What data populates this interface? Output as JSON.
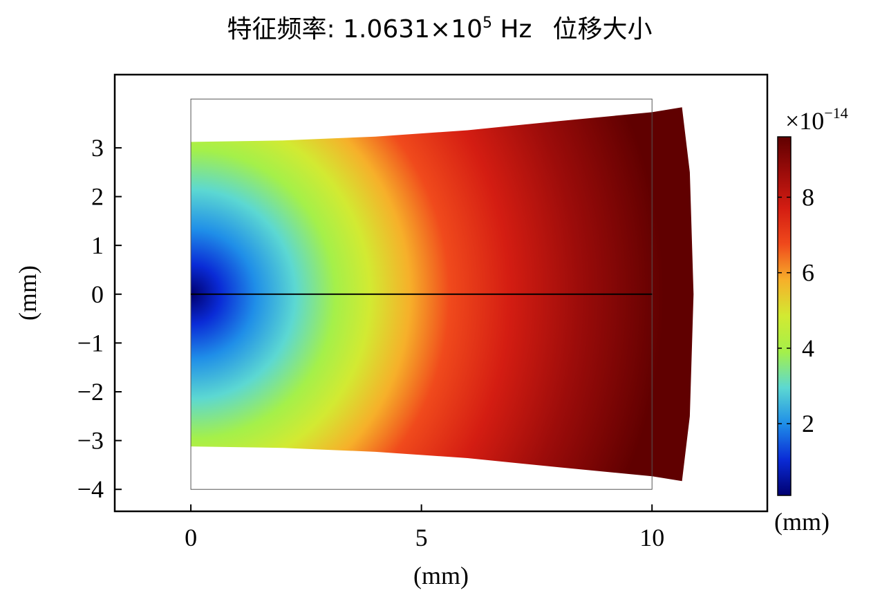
{
  "chart_data": {
    "type": "heatmap",
    "title": "特征频率: 1.0631×10",
    "title_exponent": "5",
    "title_suffix": " Hz",
    "subtitle": "位移大小",
    "xlabel": "(mm)",
    "ylabel": "(mm)",
    "xlim": [
      -1.65,
      12.5
    ],
    "ylim": [
      -4.45,
      4.5
    ],
    "x_ticks": [
      0,
      5,
      10
    ],
    "x_tick_labels": [
      "0",
      "5",
      "10"
    ],
    "y_ticks": [
      3,
      2,
      1,
      0,
      -1,
      -2,
      -3,
      -4
    ],
    "y_tick_labels": [
      "3",
      "2",
      "1",
      "0",
      "−1",
      "−2",
      "−3",
      "−4"
    ],
    "grid": false,
    "undeformed_outline": {
      "x": [
        0,
        10
      ],
      "y": [
        -4,
        4
      ]
    },
    "centerline": {
      "y": 0,
      "x": [
        0,
        10
      ]
    },
    "deformed_shape": {
      "top_edge": [
        [
          0,
          3.12
        ],
        [
          2,
          3.15
        ],
        [
          4,
          3.23
        ],
        [
          6,
          3.36
        ],
        [
          8,
          3.55
        ],
        [
          10,
          3.73
        ],
        [
          10.65,
          3.83
        ]
      ],
      "right_edge": [
        [
          10.65,
          3.83
        ],
        [
          10.82,
          2.5
        ],
        [
          10.9,
          0
        ],
        [
          10.82,
          -2.5
        ],
        [
          10.65,
          -3.83
        ]
      ],
      "bottom_edge": [
        [
          10.65,
          -3.83
        ],
        [
          10,
          -3.73
        ],
        [
          8,
          -3.55
        ],
        [
          6,
          -3.36
        ],
        [
          4,
          -3.23
        ],
        [
          2,
          -3.15
        ],
        [
          0,
          -3.12
        ]
      ]
    },
    "colorbar": {
      "multiplier": "×10",
      "multiplier_exponent": "−14",
      "unit": "(mm)",
      "min": 0.1,
      "max": 9.6,
      "ticks": [
        2,
        4,
        6,
        8
      ],
      "tick_labels": [
        "2",
        "4",
        "6",
        "8"
      ],
      "colormap": [
        "#000070",
        "#0a2bd6",
        "#1f8ee8",
        "#5cd8d2",
        "#a4f04a",
        "#d2ea32",
        "#f6b02a",
        "#f04a1c",
        "#d41d12",
        "#9c0c0a",
        "#600000"
      ]
    }
  }
}
